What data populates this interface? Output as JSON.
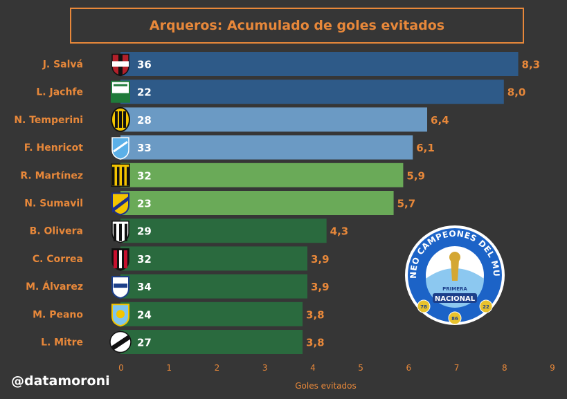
{
  "title": "Arqueros: Acumulado de goles evitados",
  "watermark": "@datamoroni",
  "colors": {
    "background": "#363636",
    "accent": "#e8883a",
    "bar_dark_blue": "#2e5a88",
    "bar_light_blue": "#6b9ac4",
    "bar_light_green": "#6aaa58",
    "bar_dark_green": "#2a6a3e"
  },
  "tournament_logo": {
    "name": "tournament-seal",
    "text_top": "TORNEO CAMPEONES DEL MUNDO",
    "text_primera": "PRIMERA",
    "text_nacional": "NACIONAL",
    "badges": [
      "78",
      "86",
      "22"
    ]
  },
  "chart_data": {
    "type": "bar",
    "orientation": "horizontal",
    "title": "Arqueros: Acumulado de goles evitados",
    "xlabel": "Goles evitados",
    "ylabel": "",
    "xlim": [
      0,
      9
    ],
    "xticks": [
      0,
      1,
      2,
      3,
      4,
      5,
      6,
      7,
      8,
      9
    ],
    "grid": false,
    "categories": [
      "J. Salvá",
      "L. Jachfe",
      "N. Temperini",
      "F. Henricot",
      "R. Martínez",
      "N. Sumavil",
      "B. Olivera",
      "C. Correa",
      "M. Álvarez",
      "M. Peano",
      "L. Mitre"
    ],
    "values": [
      8.3,
      8.0,
      6.4,
      6.1,
      5.9,
      5.7,
      4.3,
      3.9,
      3.9,
      3.8,
      3.8
    ],
    "value_labels": [
      "8,3",
      "8,0",
      "6,4",
      "6,1",
      "5,9",
      "5,7",
      "4,3",
      "3,9",
      "3,9",
      "3,8",
      "3,8"
    ],
    "inner_labels": [
      "36",
      "22",
      "28",
      "33",
      "32",
      "23",
      "29",
      "32",
      "34",
      "24",
      "27"
    ],
    "bar_colors": [
      "#2e5a88",
      "#2e5a88",
      "#6b9ac4",
      "#6b9ac4",
      "#6aaa58",
      "#6aaa58",
      "#2a6a3e",
      "#2a6a3e",
      "#2a6a3e",
      "#2a6a3e",
      "#2a6a3e"
    ],
    "club_icons": [
      "patronato-crest-icon",
      "ferro-general-pico-crest-icon",
      "madryn-crest-icon",
      "cadu-crest-icon",
      "almirante-brown-crest-icon",
      "atlanta-crest-icon",
      "gimnasia-crest-icon",
      "chacarita-crest-icon",
      "quilmes-crest-icon",
      "temperley-crest-icon",
      "all-boys-crest-icon"
    ]
  }
}
